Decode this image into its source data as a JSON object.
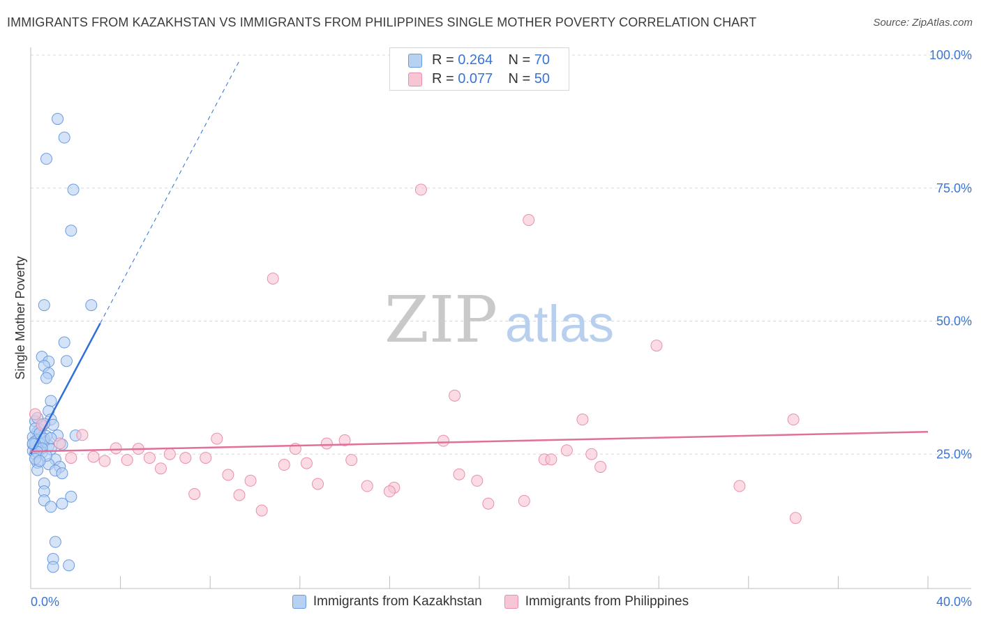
{
  "title": "IMMIGRANTS FROM KAZAKHSTAN VS IMMIGRANTS FROM PHILIPPINES SINGLE MOTHER POVERTY CORRELATION CHART",
  "source": "Source: ZipAtlas.com",
  "watermark": {
    "zip": "ZIP",
    "atlas": "atlas"
  },
  "stats": [
    {
      "r_label": "R = ",
      "r_value": "0.264",
      "n_label": "N = ",
      "n_value": "70"
    },
    {
      "r_label": "R = ",
      "r_value": "0.077",
      "n_label": "N = ",
      "n_value": "50"
    }
  ],
  "legend": [
    {
      "label": "Immigrants from Kazakhstan"
    },
    {
      "label": "Immigrants from Philippines"
    }
  ],
  "colors": {
    "kaz_fill": "#b7d1f3",
    "kaz_stroke": "#6a9be0",
    "kaz_line": "#2f6fd6",
    "phi_fill": "#f8c5d4",
    "phi_stroke": "#e98fab",
    "phi_line": "#e0709a",
    "axis_label": "#3a74d4",
    "grid": "#d9d9d9"
  },
  "chart_data": {
    "type": "scatter",
    "title": "IMMIGRANTS FROM KAZAKHSTAN VS IMMIGRANTS FROM PHILIPPINES SINGLE MOTHER POVERTY CORRELATION CHART",
    "xlabel": "",
    "ylabel": "Single Mother Poverty",
    "xlim": [
      0,
      40
    ],
    "ylim": [
      0,
      100
    ],
    "x_tick_labels": [
      "0.0%",
      "40.0%"
    ],
    "y_ticks": [
      25,
      50,
      75,
      100
    ],
    "y_tick_labels": [
      "25.0%",
      "50.0%",
      "75.0%",
      "100.0%"
    ],
    "grid": true,
    "legend_position": "bottom",
    "series": [
      {
        "name": "Immigrants from Kazakhstan",
        "r": 0.264,
        "n": 70,
        "trend": {
          "x0": 0.0,
          "y0": 25.0,
          "x1": 3.1,
          "y1": 49.6,
          "dash_to_x": 9.3,
          "dash_to_y": 98.9
        },
        "points": [
          [
            1.2,
            88.0
          ],
          [
            1.5,
            84.5
          ],
          [
            0.7,
            80.5
          ],
          [
            1.9,
            74.7
          ],
          [
            1.8,
            67.0
          ],
          [
            2.7,
            53.0
          ],
          [
            0.6,
            53.0
          ],
          [
            1.5,
            46.0
          ],
          [
            0.5,
            43.3
          ],
          [
            1.6,
            42.5
          ],
          [
            0.8,
            42.4
          ],
          [
            0.6,
            41.6
          ],
          [
            0.8,
            40.2
          ],
          [
            0.7,
            39.3
          ],
          [
            0.9,
            35.0
          ],
          [
            0.8,
            33.1
          ],
          [
            0.9,
            31.5
          ],
          [
            0.2,
            31.2
          ],
          [
            1.0,
            30.5
          ],
          [
            0.5,
            30.2
          ],
          [
            0.4,
            29.6
          ],
          [
            0.3,
            29.2
          ],
          [
            1.2,
            28.5
          ],
          [
            0.7,
            28.4
          ],
          [
            2.0,
            28.5
          ],
          [
            0.1,
            28.2
          ],
          [
            0.5,
            27.8
          ],
          [
            0.3,
            27.6
          ],
          [
            0.2,
            27.4
          ],
          [
            0.6,
            27.2
          ],
          [
            0.4,
            27.0
          ],
          [
            0.1,
            26.8
          ],
          [
            0.8,
            26.6
          ],
          [
            1.4,
            26.8
          ],
          [
            0.2,
            26.3
          ],
          [
            0.3,
            26.0
          ],
          [
            0.9,
            25.9
          ],
          [
            0.1,
            25.6
          ],
          [
            0.5,
            25.3
          ],
          [
            0.2,
            25.0
          ],
          [
            1.1,
            24.0
          ],
          [
            0.3,
            23.4
          ],
          [
            0.8,
            23.1
          ],
          [
            1.3,
            22.6
          ],
          [
            0.3,
            22.0
          ],
          [
            1.1,
            21.9
          ],
          [
            1.4,
            21.4
          ],
          [
            0.6,
            19.5
          ],
          [
            0.6,
            18.0
          ],
          [
            1.8,
            17.0
          ],
          [
            0.6,
            16.3
          ],
          [
            1.4,
            15.7
          ],
          [
            0.9,
            15.1
          ],
          [
            1.1,
            8.5
          ],
          [
            1.0,
            5.3
          ],
          [
            1.0,
            3.8
          ],
          [
            1.7,
            4.1
          ],
          [
            0.2,
            29.8
          ],
          [
            0.4,
            28.9
          ],
          [
            0.6,
            27.9
          ],
          [
            0.2,
            26.9
          ],
          [
            0.5,
            26.1
          ],
          [
            0.3,
            25.4
          ],
          [
            0.7,
            24.7
          ],
          [
            0.2,
            24.1
          ],
          [
            0.4,
            23.7
          ],
          [
            0.6,
            30.7
          ],
          [
            0.3,
            31.8
          ],
          [
            0.9,
            28.0
          ],
          [
            0.1,
            27.0
          ]
        ]
      },
      {
        "name": "Immigrants from Philippines",
        "r": 0.077,
        "n": 50,
        "trend": {
          "x0": 0.0,
          "y0": 25.5,
          "x1": 40.0,
          "y1": 29.2
        },
        "points": [
          [
            17.4,
            74.7
          ],
          [
            22.2,
            69.0
          ],
          [
            10.8,
            58.0
          ],
          [
            27.9,
            45.4
          ],
          [
            18.9,
            36.0
          ],
          [
            24.6,
            31.5
          ],
          [
            34.0,
            31.5
          ],
          [
            0.2,
            32.5
          ],
          [
            0.5,
            30.5
          ],
          [
            2.3,
            28.6
          ],
          [
            8.3,
            27.9
          ],
          [
            14.0,
            27.6
          ],
          [
            13.2,
            27.0
          ],
          [
            18.4,
            27.5
          ],
          [
            1.3,
            27.0
          ],
          [
            3.8,
            26.1
          ],
          [
            4.8,
            26.0
          ],
          [
            11.8,
            26.0
          ],
          [
            23.9,
            25.7
          ],
          [
            25.0,
            25.0
          ],
          [
            6.2,
            25.0
          ],
          [
            1.8,
            24.3
          ],
          [
            2.8,
            24.5
          ],
          [
            5.3,
            24.3
          ],
          [
            6.9,
            24.3
          ],
          [
            7.8,
            24.3
          ],
          [
            3.3,
            23.7
          ],
          [
            4.3,
            23.9
          ],
          [
            14.3,
            23.9
          ],
          [
            22.9,
            24.0
          ],
          [
            23.2,
            24.0
          ],
          [
            11.3,
            23.0
          ],
          [
            12.3,
            23.3
          ],
          [
            5.8,
            22.3
          ],
          [
            25.4,
            22.6
          ],
          [
            19.1,
            21.2
          ],
          [
            8.8,
            21.1
          ],
          [
            9.8,
            20.0
          ],
          [
            19.9,
            20.0
          ],
          [
            12.8,
            19.4
          ],
          [
            15.0,
            19.0
          ],
          [
            16.2,
            18.7
          ],
          [
            31.6,
            19.0
          ],
          [
            16.0,
            18.0
          ],
          [
            7.3,
            17.5
          ],
          [
            9.3,
            17.3
          ],
          [
            20.4,
            15.7
          ],
          [
            22.0,
            16.2
          ],
          [
            10.3,
            14.4
          ],
          [
            34.1,
            13.0
          ]
        ]
      }
    ]
  }
}
